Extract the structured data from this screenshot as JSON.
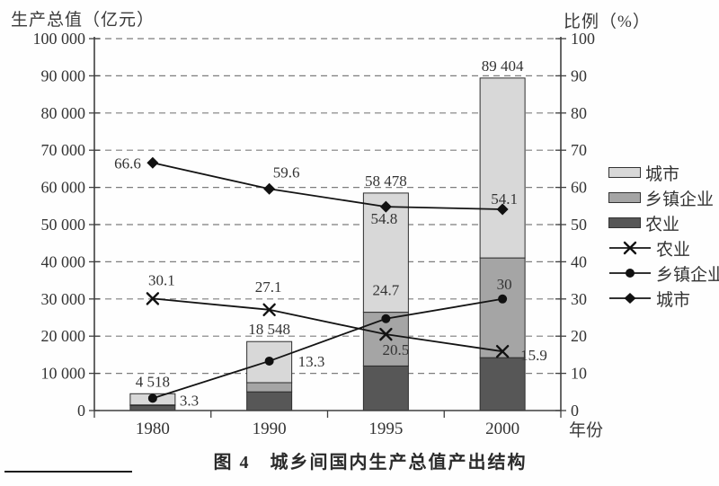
{
  "figure": {
    "caption": "图 4　城乡间国内生产总值产出结构"
  },
  "chart_data": {
    "type": "combo: stacked-bar + line, dual y-axes",
    "categories": [
      "1980",
      "1990",
      "1995",
      "2000"
    ],
    "x_axis_label": "年份",
    "left_axis": {
      "title": "生产总值（亿元）",
      "min": 0,
      "max": 100000,
      "step": 10000,
      "tick_labels": [
        "0",
        "10 000",
        "20 000",
        "30 000",
        "40 000",
        "50 000",
        "60 000",
        "70 000",
        "80 000",
        "90 000",
        "100 000"
      ]
    },
    "right_axis": {
      "title": "比例（%）",
      "min": 0,
      "max": 100,
      "step": 10,
      "tick_labels": [
        "0",
        "10",
        "20",
        "30",
        "40",
        "50",
        "60",
        "70",
        "80",
        "90",
        "100"
      ]
    },
    "grid": "horizontal dashed gridlines at every 10 000 (left axis)",
    "bars": {
      "unit": "亿元",
      "totals": [
        4518,
        18548,
        58478,
        89404
      ],
      "total_labels": [
        "4 518",
        "18 548",
        "58 478",
        "89 404"
      ],
      "stack_bottom_to_top": [
        {
          "name": "农业",
          "color": "#575757"
        },
        {
          "name": "乡镇企业",
          "color": "#a5a5a5"
        },
        {
          "name": "城市",
          "color": "#d8d8d8"
        }
      ],
      "note": "segment heights = total × series percentage from the matching line series"
    },
    "lines": [
      {
        "name": "农业",
        "marker": "x",
        "values": [
          30.1,
          27.1,
          20.5,
          15.9
        ],
        "labels": [
          "30.1",
          "27.1",
          "20.5",
          "15.9"
        ]
      },
      {
        "name": "乡镇企业",
        "marker": "dot",
        "values": [
          3.3,
          13.3,
          24.7,
          30
        ],
        "labels": [
          "3.3",
          "13.3",
          "24.7",
          "30"
        ]
      },
      {
        "name": "城市",
        "marker": "diamond",
        "values": [
          66.6,
          59.6,
          54.8,
          54.1
        ],
        "labels": [
          "66.6",
          "59.6",
          "54.8",
          "54.1"
        ]
      }
    ],
    "legend_position": "right",
    "legend": [
      {
        "kind": "swatch",
        "color": "#d8d8d8",
        "label": "城市"
      },
      {
        "kind": "swatch",
        "color": "#a5a5a5",
        "label": "乡镇企业"
      },
      {
        "kind": "swatch",
        "color": "#575757",
        "label": "农业"
      },
      {
        "kind": "marker",
        "marker": "x",
        "label": "农业"
      },
      {
        "kind": "marker",
        "marker": "dot",
        "label": "乡镇企业"
      },
      {
        "kind": "marker",
        "marker": "diamond",
        "label": "城市"
      }
    ]
  }
}
